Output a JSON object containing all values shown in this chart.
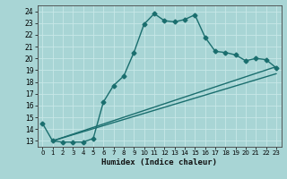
{
  "title": "",
  "xlabel": "Humidex (Indice chaleur)",
  "bg_color": "#a8d5d5",
  "line_color": "#1a6e6e",
  "grid_color": "#c8e8e8",
  "xlim": [
    -0.5,
    23.5
  ],
  "ylim": [
    12.5,
    24.5
  ],
  "xticks": [
    0,
    1,
    2,
    3,
    4,
    5,
    6,
    7,
    8,
    9,
    10,
    11,
    12,
    13,
    14,
    15,
    16,
    17,
    18,
    19,
    20,
    21,
    22,
    23
  ],
  "yticks": [
    13,
    14,
    15,
    16,
    17,
    18,
    19,
    20,
    21,
    22,
    23,
    24
  ],
  "line1_x": [
    0,
    1,
    2,
    3,
    4,
    5,
    6,
    7,
    8,
    9,
    10,
    11,
    12,
    13,
    14,
    15,
    16,
    17,
    18,
    19,
    20,
    21,
    22,
    23
  ],
  "line1_y": [
    14.5,
    13.0,
    12.9,
    12.9,
    12.9,
    13.2,
    16.3,
    17.7,
    18.5,
    20.5,
    22.9,
    23.8,
    23.2,
    23.1,
    23.3,
    23.7,
    21.8,
    20.6,
    20.5,
    20.3,
    19.8,
    20.0,
    19.9,
    19.2
  ],
  "line2_x": [
    1,
    23
  ],
  "line2_y": [
    13.0,
    19.3
  ],
  "line3_x": [
    1,
    23
  ],
  "line3_y": [
    13.0,
    18.7
  ],
  "marker_size": 2.5,
  "line_width": 1.0
}
